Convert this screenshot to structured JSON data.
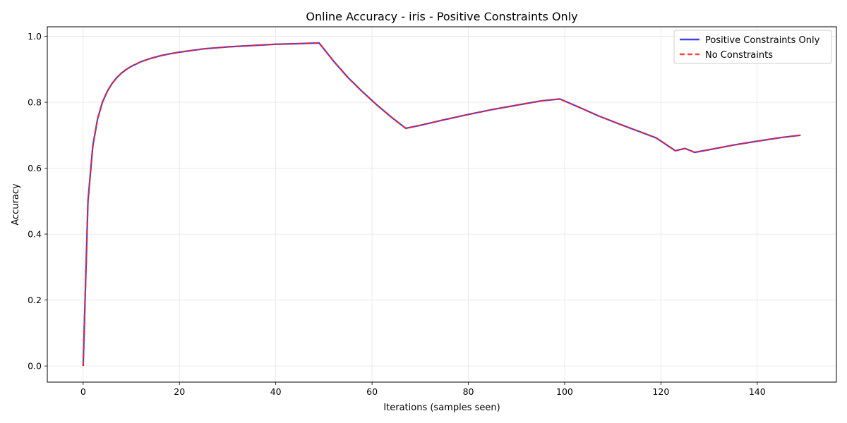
{
  "chart_data": {
    "type": "line",
    "title": "Online Accuracy - iris - Positive Constraints Only",
    "xlabel": "Iterations (samples seen)",
    "ylabel": "Accuracy",
    "xlim": [
      -7.45,
      156.45
    ],
    "ylim": [
      -0.049,
      1.029
    ],
    "xticks": [
      0,
      20,
      40,
      60,
      80,
      100,
      120,
      140
    ],
    "yticks": [
      0.0,
      0.2,
      0.4,
      0.6,
      0.8,
      1.0
    ],
    "grid": true,
    "legend_position": "top-right",
    "series": [
      {
        "name": "Positive Constraints Only",
        "color": "#2020e0",
        "style": "solid",
        "x": [
          0,
          1,
          2,
          3,
          4,
          5,
          6,
          7,
          8,
          9,
          10,
          12,
          14,
          16,
          18,
          20,
          25,
          30,
          35,
          40,
          45,
          49,
          52,
          55,
          58,
          61,
          64,
          67,
          70,
          75,
          80,
          85,
          90,
          95,
          99,
          103,
          107,
          111,
          115,
          119,
          123,
          125,
          127,
          130,
          135,
          140,
          145,
          149
        ],
        "y": [
          0.0,
          0.5,
          0.667,
          0.75,
          0.8,
          0.833,
          0.857,
          0.875,
          0.889,
          0.9,
          0.909,
          0.923,
          0.933,
          0.941,
          0.947,
          0.952,
          0.962,
          0.968,
          0.972,
          0.976,
          0.978,
          0.98,
          0.925,
          0.875,
          0.832,
          0.792,
          0.755,
          0.721,
          0.73,
          0.747,
          0.763,
          0.778,
          0.791,
          0.804,
          0.81,
          0.785,
          0.759,
          0.736,
          0.714,
          0.692,
          0.653,
          0.66,
          0.648,
          0.656,
          0.67,
          0.682,
          0.693,
          0.7
        ]
      },
      {
        "name": "No Constraints",
        "color": "#ff2020",
        "style": "dashed",
        "x": [
          0,
          1,
          2,
          3,
          4,
          5,
          6,
          7,
          8,
          9,
          10,
          12,
          14,
          16,
          18,
          20,
          25,
          30,
          35,
          40,
          45,
          49,
          52,
          55,
          58,
          61,
          64,
          67,
          70,
          75,
          80,
          85,
          90,
          95,
          99,
          103,
          107,
          111,
          115,
          119,
          123,
          125,
          127,
          130,
          135,
          140,
          145,
          149
        ],
        "y": [
          0.0,
          0.5,
          0.667,
          0.75,
          0.8,
          0.833,
          0.857,
          0.875,
          0.889,
          0.9,
          0.909,
          0.923,
          0.933,
          0.941,
          0.947,
          0.952,
          0.962,
          0.968,
          0.972,
          0.976,
          0.978,
          0.98,
          0.925,
          0.875,
          0.832,
          0.792,
          0.755,
          0.721,
          0.73,
          0.747,
          0.763,
          0.778,
          0.791,
          0.804,
          0.81,
          0.785,
          0.759,
          0.736,
          0.714,
          0.692,
          0.653,
          0.66,
          0.648,
          0.656,
          0.67,
          0.682,
          0.693,
          0.7
        ]
      }
    ]
  }
}
